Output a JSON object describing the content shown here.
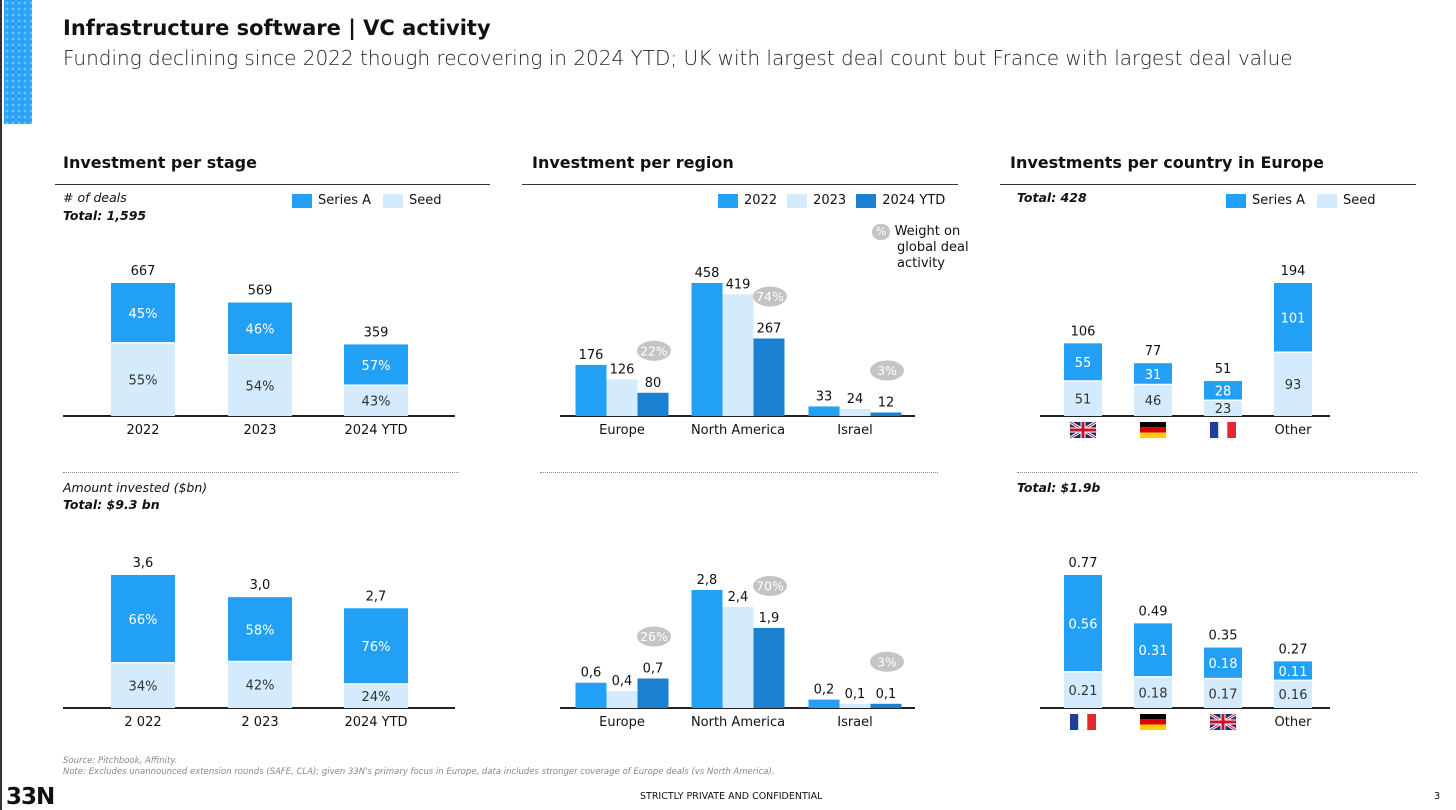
{
  "header": {
    "title": "Infrastructure software | VC activity",
    "subtitle": "Funding declining since 2022 though recovering in 2024 YTD; UK with largest deal count but France with largest deal value"
  },
  "colors": {
    "series_a": "#22a0f6",
    "seed": "#d3ebfc",
    "ytd": "#1b80d0",
    "bubble": "#c4c4c4",
    "axis": "#222"
  },
  "sections": {
    "stage": {
      "title": "Investment per stage",
      "deals_label": "# of deals",
      "deals_total": "Total: 1,595",
      "amount_label": "Amount invested ($bn)",
      "amount_total": "Total: $9.3 bn",
      "legend": [
        "Series A",
        "Seed"
      ]
    },
    "region": {
      "title": "Investment per region",
      "legend": [
        "2022",
        "2023",
        "2024 YTD"
      ],
      "bubble_symbol": "%",
      "bubble_note": [
        "Weight on",
        "global deal",
        "activity"
      ]
    },
    "country": {
      "title": "Investments per country in Europe",
      "deals_total": "Total: 428",
      "amount_total": "Total: $1.9b",
      "legend": [
        "Series A",
        "Seed"
      ]
    }
  },
  "chart_data": [
    {
      "id": "stage-deals",
      "type": "bar",
      "stacked": true,
      "categories": [
        "2022",
        "2023",
        "2024 YTD"
      ],
      "totals": [
        667,
        569,
        359
      ],
      "total_labels": [
        "667",
        "569",
        "359"
      ],
      "series": [
        {
          "name": "Series A",
          "pct_labels": [
            "45%",
            "46%",
            "57%"
          ],
          "share": [
            0.45,
            0.46,
            0.57
          ]
        },
        {
          "name": "Seed",
          "pct_labels": [
            "55%",
            "54%",
            "43%"
          ],
          "share": [
            0.55,
            0.54,
            0.43
          ]
        }
      ]
    },
    {
      "id": "region-deals",
      "type": "bar",
      "grouped": true,
      "categories": [
        "Europe",
        "North America",
        "Israel"
      ],
      "series": [
        {
          "name": "2022",
          "values": [
            176,
            458,
            33
          ],
          "labels": [
            "176",
            "458",
            "33"
          ]
        },
        {
          "name": "2023",
          "values": [
            126,
            419,
            24
          ],
          "labels": [
            "126",
            "419",
            "24"
          ]
        },
        {
          "name": "2024 YTD",
          "values": [
            80,
            267,
            12
          ],
          "labels": [
            "80",
            "267",
            "12"
          ]
        }
      ],
      "weights": [
        "22%",
        "74%",
        "3%"
      ]
    },
    {
      "id": "country-deals",
      "type": "bar",
      "stacked": true,
      "categories": [
        "flag-uk",
        "flag-germany",
        "flag-france",
        "Other"
      ],
      "totals": [
        106,
        77,
        51,
        194
      ],
      "total_labels": [
        "106",
        "77",
        "51",
        "194"
      ],
      "series": [
        {
          "name": "Series A",
          "values": [
            55,
            31,
            28,
            101
          ],
          "labels": [
            "55",
            "31",
            "28",
            "101"
          ]
        },
        {
          "name": "Seed",
          "values": [
            51,
            46,
            23,
            93
          ],
          "labels": [
            "51",
            "46",
            "23",
            "93"
          ]
        }
      ]
    },
    {
      "id": "stage-amount",
      "type": "bar",
      "stacked": true,
      "unit": "$bn",
      "categories": [
        "2 022",
        "2 023",
        "2024 YTD"
      ],
      "totals": [
        3.6,
        3.0,
        2.7
      ],
      "total_labels": [
        "3,6",
        "3,0",
        "2,7"
      ],
      "series": [
        {
          "name": "Series A",
          "pct_labels": [
            "66%",
            "58%",
            "76%"
          ],
          "share": [
            0.66,
            0.58,
            0.76
          ]
        },
        {
          "name": "Seed",
          "pct_labels": [
            "34%",
            "42%",
            "24%"
          ],
          "share": [
            0.34,
            0.42,
            0.24
          ]
        }
      ]
    },
    {
      "id": "region-amount",
      "type": "bar",
      "grouped": true,
      "unit": "$bn",
      "categories": [
        "Europe",
        "North America",
        "Israel"
      ],
      "series": [
        {
          "name": "2022",
          "values": [
            0.6,
            2.8,
            0.2
          ],
          "labels": [
            "0,6",
            "2,8",
            "0,2"
          ]
        },
        {
          "name": "2023",
          "values": [
            0.4,
            2.4,
            0.1
          ],
          "labels": [
            "0,4",
            "2,4",
            "0,1"
          ]
        },
        {
          "name": "2024 YTD",
          "values": [
            0.7,
            1.9,
            0.1
          ],
          "labels": [
            "0,7",
            "1,9",
            "0,1"
          ]
        }
      ],
      "weights": [
        "26%",
        "70%",
        "3%"
      ]
    },
    {
      "id": "country-amount",
      "type": "bar",
      "stacked": true,
      "unit": "$bn",
      "categories": [
        "flag-france",
        "flag-germany",
        "flag-uk",
        "Other"
      ],
      "totals": [
        0.77,
        0.49,
        0.35,
        0.27
      ],
      "total_labels": [
        "0.77",
        "0.49",
        "0.35",
        "0.27"
      ],
      "series": [
        {
          "name": "Series A",
          "values": [
            0.56,
            0.31,
            0.18,
            0.11
          ],
          "labels": [
            "0.56",
            "0.31",
            "0.18",
            "0.11"
          ]
        },
        {
          "name": "Seed",
          "values": [
            0.21,
            0.18,
            0.17,
            0.16
          ],
          "labels": [
            "0.21",
            "0.18",
            "0.17",
            "0.16"
          ]
        }
      ]
    }
  ],
  "footer": {
    "source": "Source: Pitchbook, Affinity.",
    "note": "Note: Excludes unannounced extension rounds (SAFE, CLA); given 33N's primary focus in Europe, data includes stronger coverage of Europe deals (vs North America).",
    "logo": "33N",
    "confidential": "STRICTLY PRIVATE AND CONFIDENTIAL",
    "page": "3"
  }
}
